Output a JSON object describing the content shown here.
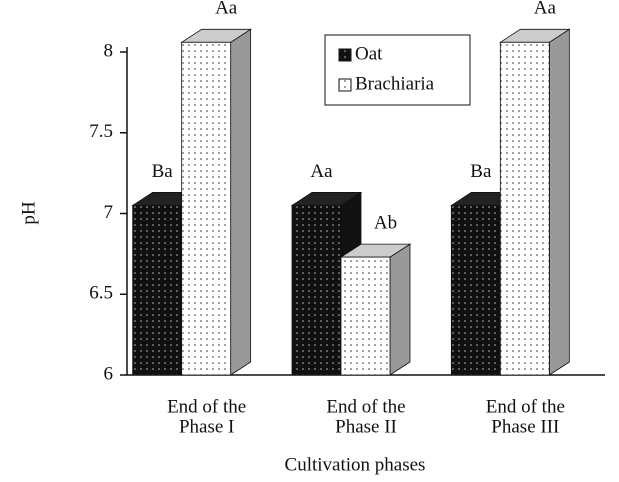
{
  "chart_data": {
    "type": "bar3d",
    "y_axis_label": "pH",
    "x_axis_label": "Cultivation phases",
    "categories": [
      [
        "End of the",
        "Phase I"
      ],
      [
        "End of the",
        "Phase II"
      ],
      [
        "End of the",
        "Phase III"
      ]
    ],
    "series": [
      {
        "name": "Oat",
        "color": "#111111",
        "values": [
          7.05,
          7.05,
          7.05
        ],
        "labels": [
          "Ba",
          "Aa",
          "Ba"
        ]
      },
      {
        "name": "Brachiaria",
        "color": "#ffffff",
        "values": [
          8.06,
          6.73,
          8.06
        ],
        "labels": [
          "Aa",
          "Ab",
          "Aa"
        ]
      }
    ],
    "ylim": [
      6,
      8
    ],
    "yticks": [
      6,
      6.5,
      7,
      7.5,
      8
    ],
    "legend": "top-right"
  }
}
